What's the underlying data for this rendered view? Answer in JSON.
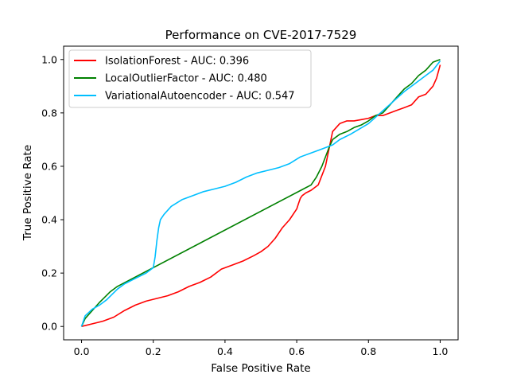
{
  "chart_data": {
    "type": "line",
    "title": "Performance on CVE-2017-7529",
    "xlabel": "False Positive Rate",
    "ylabel": "True Positive Rate",
    "xlim": [
      -0.05,
      1.05
    ],
    "ylim": [
      -0.05,
      1.05
    ],
    "xticks": [
      0.0,
      0.2,
      0.4,
      0.6,
      0.8,
      1.0
    ],
    "yticks": [
      0.0,
      0.2,
      0.4,
      0.6,
      0.8,
      1.0
    ],
    "xtick_labels": [
      "0.0",
      "0.2",
      "0.4",
      "0.6",
      "0.8",
      "1.0"
    ],
    "ytick_labels": [
      "0.0",
      "0.2",
      "0.4",
      "0.6",
      "0.8",
      "1.0"
    ],
    "grid": false,
    "legend_position": "upper-left",
    "series": [
      {
        "name": "IsolationForest - AUC: 0.396",
        "color": "#ff0000",
        "x": [
          0.0,
          0.03,
          0.06,
          0.09,
          0.12,
          0.15,
          0.18,
          0.21,
          0.24,
          0.27,
          0.3,
          0.33,
          0.36,
          0.39,
          0.42,
          0.45,
          0.48,
          0.5,
          0.52,
          0.54,
          0.56,
          0.58,
          0.6,
          0.605,
          0.61,
          0.615,
          0.625,
          0.64,
          0.66,
          0.68,
          0.7,
          0.72,
          0.74,
          0.76,
          0.78,
          0.8,
          0.82,
          0.84,
          0.86,
          0.88,
          0.9,
          0.92,
          0.94,
          0.96,
          0.98,
          0.99,
          1.0
        ],
        "y": [
          0.0,
          0.01,
          0.02,
          0.035,
          0.06,
          0.08,
          0.095,
          0.105,
          0.115,
          0.13,
          0.15,
          0.165,
          0.185,
          0.215,
          0.23,
          0.245,
          0.265,
          0.28,
          0.3,
          0.33,
          0.37,
          0.4,
          0.44,
          0.46,
          0.48,
          0.49,
          0.5,
          0.51,
          0.53,
          0.6,
          0.73,
          0.76,
          0.77,
          0.77,
          0.775,
          0.78,
          0.79,
          0.79,
          0.8,
          0.81,
          0.82,
          0.83,
          0.86,
          0.87,
          0.9,
          0.93,
          0.98
        ]
      },
      {
        "name": "LocalOutlierFactor - AUC: 0.480",
        "color": "#008000",
        "x": [
          0.0,
          0.01,
          0.03,
          0.05,
          0.08,
          0.1,
          0.64,
          0.655,
          0.67,
          0.69,
          0.7,
          0.72,
          0.74,
          0.76,
          0.78,
          0.8,
          0.82,
          0.84,
          0.86,
          0.88,
          0.9,
          0.92,
          0.94,
          0.96,
          0.98,
          1.0
        ],
        "y": [
          0.0,
          0.03,
          0.06,
          0.09,
          0.13,
          0.15,
          0.53,
          0.56,
          0.6,
          0.67,
          0.7,
          0.72,
          0.73,
          0.745,
          0.755,
          0.77,
          0.79,
          0.8,
          0.83,
          0.86,
          0.89,
          0.91,
          0.94,
          0.96,
          0.99,
          1.0
        ]
      },
      {
        "name": "VariationalAutoencoder - AUC: 0.547",
        "color": "#00bfff",
        "x": [
          0.0,
          0.01,
          0.03,
          0.05,
          0.07,
          0.1,
          0.12,
          0.15,
          0.18,
          0.2,
          0.205,
          0.21,
          0.215,
          0.22,
          0.23,
          0.25,
          0.28,
          0.31,
          0.34,
          0.37,
          0.4,
          0.43,
          0.46,
          0.49,
          0.52,
          0.55,
          0.58,
          0.61,
          0.64,
          0.67,
          0.7,
          0.72,
          0.75,
          0.8,
          0.85,
          0.9,
          0.93,
          0.96,
          0.98,
          1.0
        ],
        "y": [
          0.0,
          0.04,
          0.065,
          0.08,
          0.1,
          0.14,
          0.16,
          0.18,
          0.2,
          0.22,
          0.26,
          0.32,
          0.37,
          0.4,
          0.42,
          0.45,
          0.475,
          0.49,
          0.505,
          0.515,
          0.525,
          0.54,
          0.56,
          0.575,
          0.585,
          0.595,
          0.61,
          0.635,
          0.65,
          0.665,
          0.68,
          0.7,
          0.72,
          0.76,
          0.82,
          0.88,
          0.91,
          0.94,
          0.96,
          0.995
        ]
      }
    ]
  }
}
